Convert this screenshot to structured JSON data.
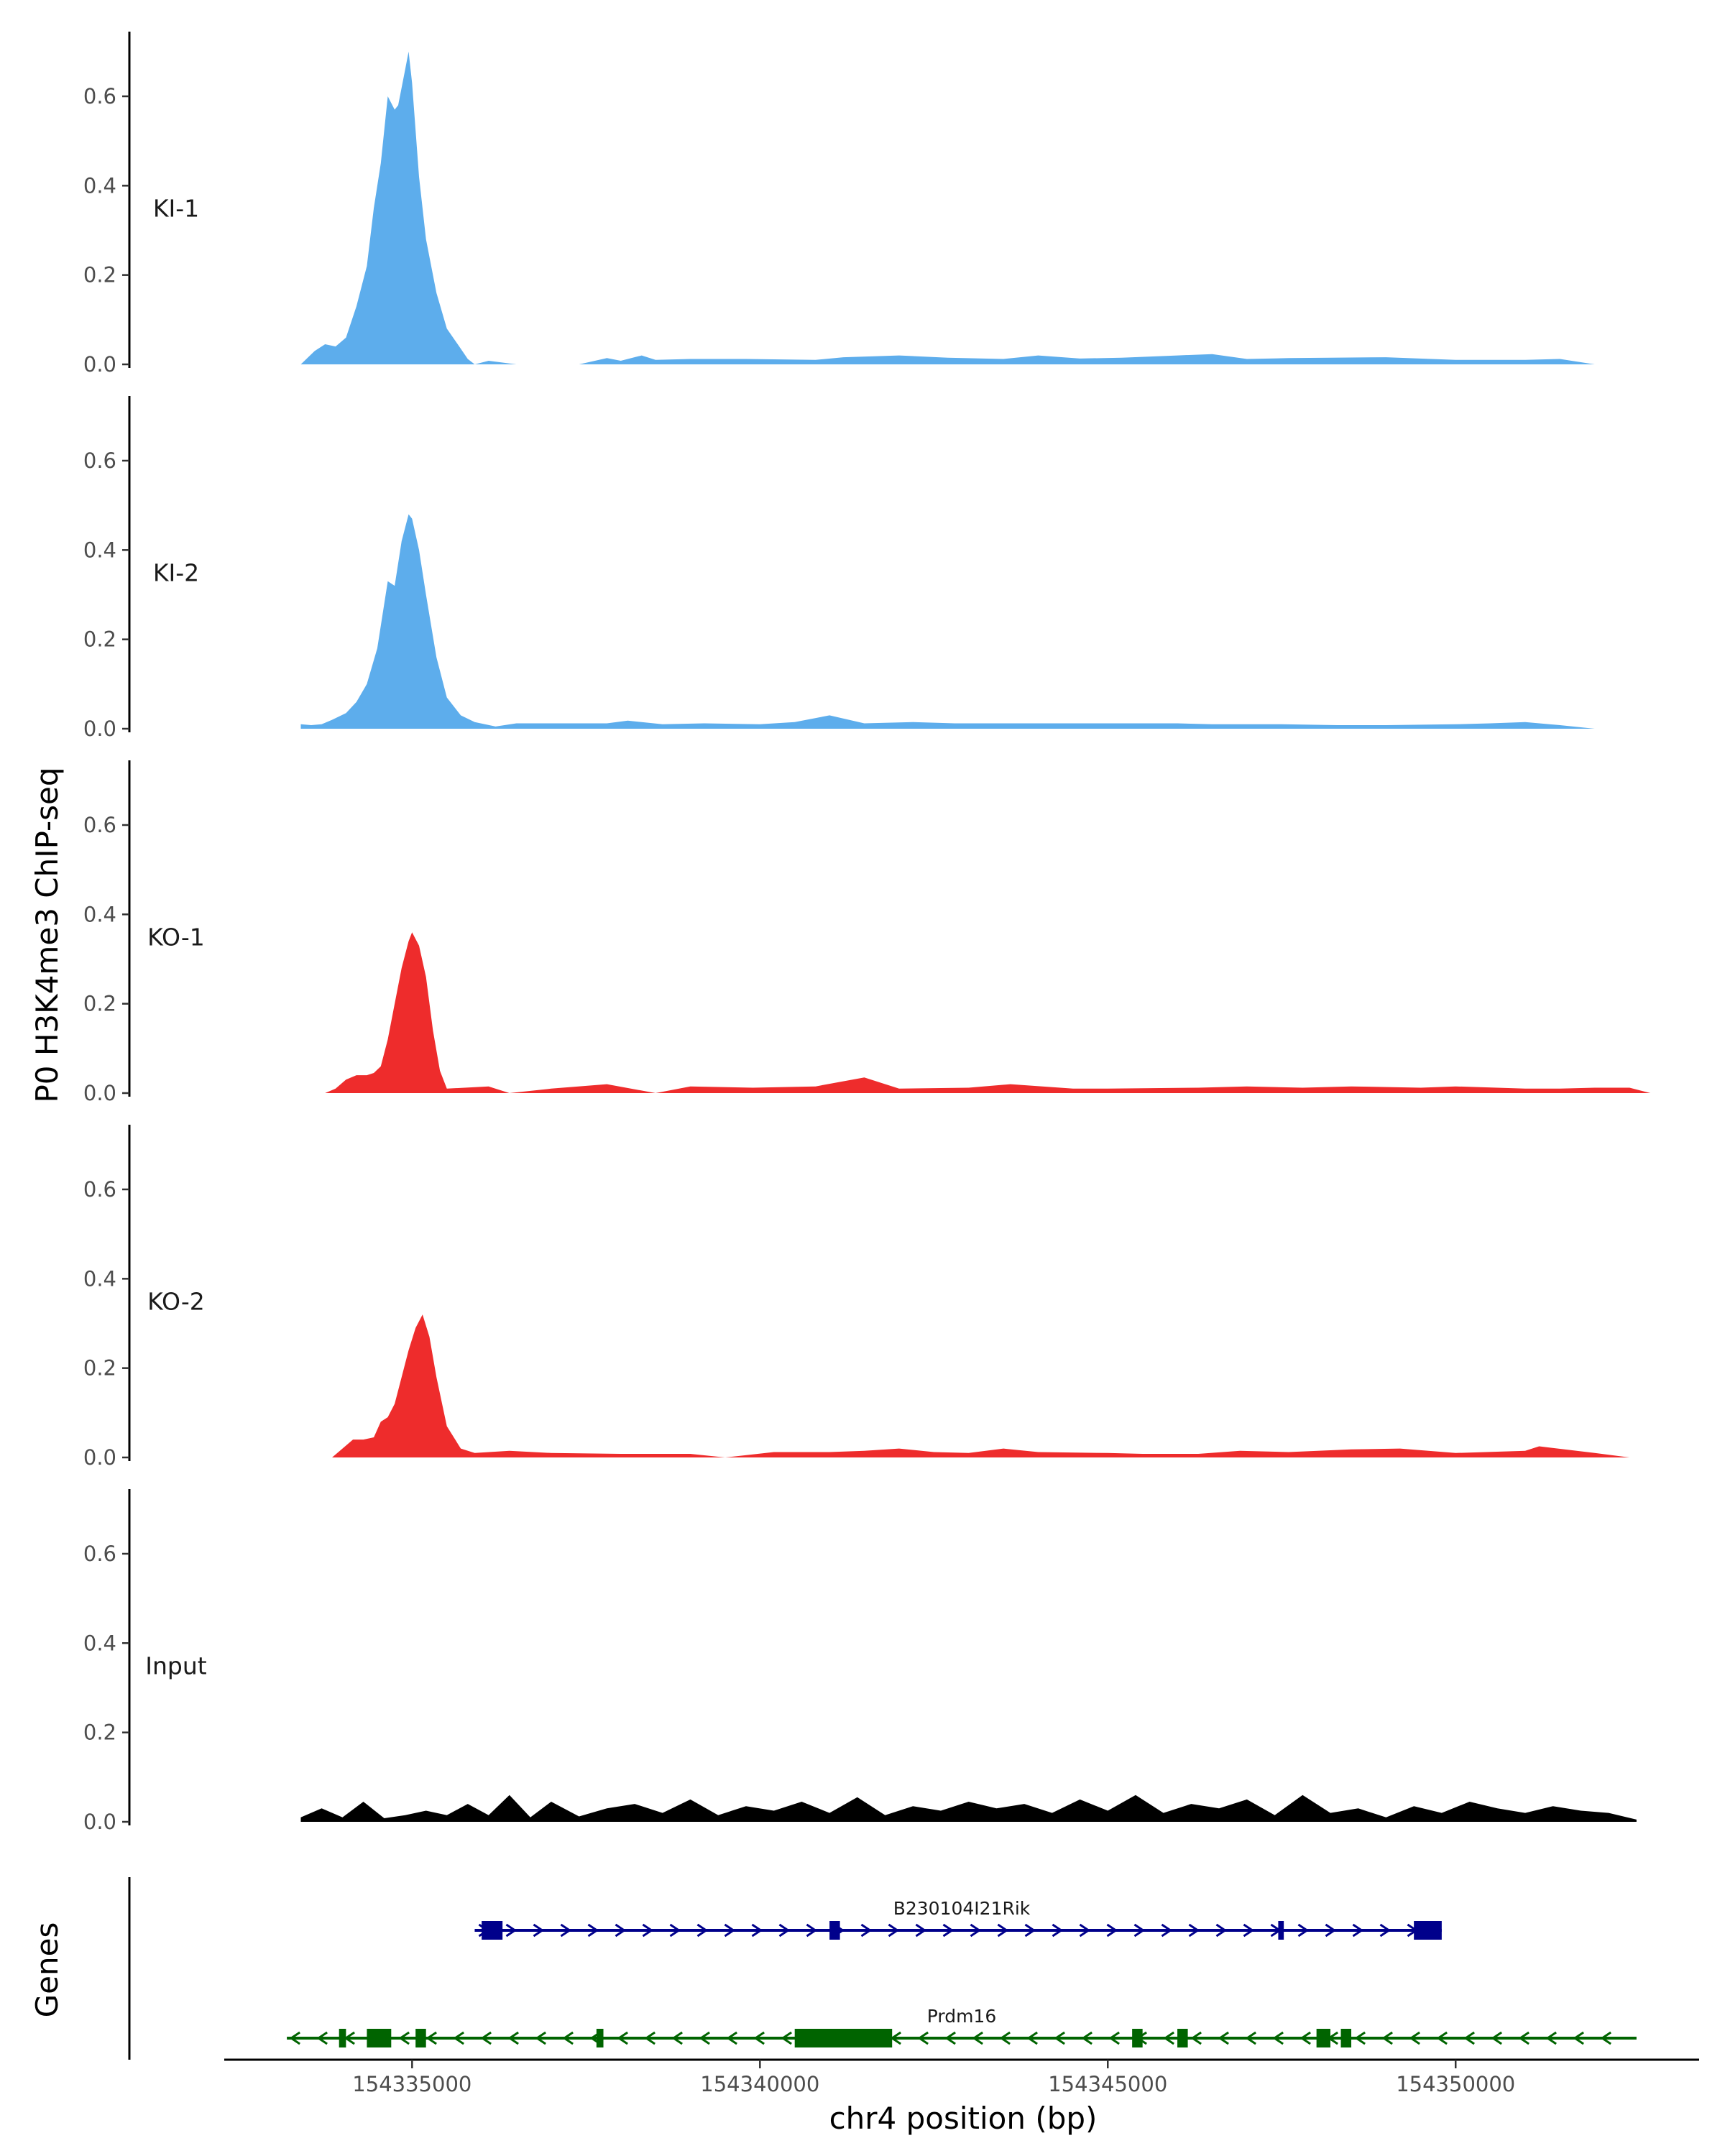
{
  "chart_data": {
    "type": "area",
    "ylabel": "P0 H3K4me3 ChIP-seq",
    "xlabel": "chr4 position (bp)",
    "xlim": [
      154332300,
      154353500
    ],
    "ylim": [
      0,
      0.74
    ],
    "yticks": [
      0.0,
      0.2,
      0.4,
      0.6
    ],
    "ytick_labels": [
      "0.0",
      "0.2",
      "0.4",
      "0.6"
    ],
    "xticks": [
      154335000,
      154340000,
      154345000,
      154350000
    ],
    "xtick_labels": [
      "154335000",
      "154340000",
      "154345000",
      "154350000"
    ],
    "grid": false,
    "colors": {
      "KI": "#5DADEC",
      "KO": "#EE2C2C",
      "Input": "#000000"
    },
    "tracks": [
      {
        "name": "KI-1",
        "color": "#5DADEC",
        "x": [
          154333400,
          154333600,
          154333750,
          154333900,
          154334050,
          154334200,
          154334350,
          154334450,
          154334550,
          154334650,
          154334750,
          154334800,
          154334900,
          154334950,
          154335000,
          154335100,
          154335200,
          154335350,
          154335500,
          154335700,
          154335800,
          154335900,
          154336100,
          154336500,
          154337400,
          154337800,
          154338000,
          154338300,
          154338500,
          154339000,
          154339800,
          154340800,
          154341200,
          154342000,
          154342700,
          154343500,
          154344000,
          154344600,
          154345200,
          154346000,
          154346500,
          154347000,
          154347600,
          154348200,
          154349000,
          154350000,
          154351000,
          154351500,
          154352000
        ],
        "values": [
          0,
          0.03,
          0.045,
          0.04,
          0.06,
          0.13,
          0.22,
          0.35,
          0.45,
          0.6,
          0.57,
          0.58,
          0.66,
          0.7,
          0.63,
          0.42,
          0.28,
          0.16,
          0.08,
          0.035,
          0.012,
          0,
          0.008,
          0,
          0,
          0.014,
          0.008,
          0.02,
          0.01,
          0.012,
          0.012,
          0.01,
          0.016,
          0.02,
          0.015,
          0.012,
          0.02,
          0.013,
          0.015,
          0.02,
          0.023,
          0.012,
          0.014,
          0.015,
          0.016,
          0.01,
          0.01,
          0.012,
          0
        ],
        "label_x": 154333000,
        "label_y": 0.35
      },
      {
        "name": "KI-2",
        "color": "#5DADEC",
        "x": [
          154333400,
          154333550,
          154333700,
          154333850,
          154334050,
          154334200,
          154334350,
          154334500,
          154334650,
          154334750,
          154334850,
          154334950,
          154335000,
          154335100,
          154335200,
          154335350,
          154335500,
          154335700,
          154335900,
          154336200,
          154336500,
          154337800,
          154338100,
          154338600,
          154339200,
          154340000,
          154340500,
          154341000,
          154341500,
          154342200,
          154342800,
          154343500,
          154344300,
          154345000,
          154345500,
          154346000,
          154346500,
          154347500,
          154348300,
          154349000,
          154350000,
          154350500,
          154351000,
          154351500,
          154352000
        ],
        "values": [
          0.01,
          0.008,
          0.01,
          0.02,
          0.035,
          0.06,
          0.1,
          0.18,
          0.33,
          0.32,
          0.42,
          0.48,
          0.47,
          0.4,
          0.3,
          0.16,
          0.07,
          0.03,
          0.015,
          0.005,
          0.012,
          0.012,
          0.018,
          0.01,
          0.012,
          0.01,
          0.015,
          0.03,
          0.012,
          0.015,
          0.012,
          0.012,
          0.012,
          0.012,
          0.012,
          0.012,
          0.01,
          0.01,
          0.008,
          0.008,
          0.01,
          0.012,
          0.015,
          0.008,
          0
        ],
        "label_x": 154333000,
        "label_y": 0.35
      },
      {
        "name": "KO-1",
        "color": "#EE2C2C",
        "x": [
          154333750,
          154333900,
          154334050,
          154334200,
          154334350,
          154334450,
          154334550,
          154334650,
          154334750,
          154334850,
          154334950,
          154335000,
          154335100,
          154335200,
          154335300,
          154335400,
          154335500,
          154336100,
          154336400,
          154337000,
          154337800,
          154338500,
          154339000,
          154339900,
          154340800,
          154341500,
          154342000,
          154343000,
          154343600,
          154344500,
          154345000,
          154346300,
          154347000,
          154347800,
          154348500,
          154349500,
          154350000,
          154351000,
          154351500,
          154352000,
          154352500,
          154352800
        ],
        "values": [
          0,
          0.01,
          0.03,
          0.04,
          0.04,
          0.045,
          0.06,
          0.12,
          0.2,
          0.28,
          0.34,
          0.36,
          0.33,
          0.26,
          0.14,
          0.05,
          0.01,
          0.015,
          0,
          0.01,
          0.02,
          0,
          0.015,
          0.012,
          0.015,
          0.035,
          0.01,
          0.012,
          0.02,
          0.01,
          0.01,
          0.012,
          0.015,
          0.012,
          0.015,
          0.012,
          0.015,
          0.01,
          0.01,
          0.012,
          0.012,
          0
        ],
        "label_x": 154333000,
        "label_y": 0.35
      },
      {
        "name": "KO-2",
        "color": "#EE2C2C",
        "x": [
          154333850,
          154334000,
          154334150,
          154334300,
          154334450,
          154334550,
          154334650,
          154334750,
          154334850,
          154334950,
          154335050,
          154335150,
          154335250,
          154335350,
          154335500,
          154335700,
          154335900,
          154336400,
          154337000,
          154338000,
          154339000,
          154339500,
          154340200,
          154341000,
          154341500,
          154342000,
          154342500,
          154343000,
          154343500,
          154344000,
          154345000,
          154345500,
          154346300,
          154346900,
          154347600,
          154348500,
          154349200,
          154350000,
          154351000,
          154351200,
          154352000,
          154352500
        ],
        "values": [
          0,
          0.02,
          0.04,
          0.04,
          0.045,
          0.08,
          0.09,
          0.12,
          0.18,
          0.24,
          0.29,
          0.32,
          0.27,
          0.18,
          0.07,
          0.02,
          0.01,
          0.015,
          0.01,
          0.008,
          0.008,
          0,
          0.012,
          0.012,
          0.015,
          0.02,
          0.012,
          0.01,
          0.02,
          0.012,
          0.01,
          0.008,
          0.008,
          0.015,
          0.012,
          0.018,
          0.02,
          0.01,
          0.015,
          0.025,
          0.01,
          0
        ],
        "label_x": 154333000,
        "label_y": 0.35
      },
      {
        "name": "Input",
        "color": "#000000",
        "x": [
          154333400,
          154333700,
          154334000,
          154334300,
          154334600,
          154334900,
          154335200,
          154335500,
          154335800,
          154336100,
          154336400,
          154336700,
          154337000,
          154337400,
          154337800,
          154338200,
          154338600,
          154339000,
          154339400,
          154339800,
          154340200,
          154340600,
          154341000,
          154341400,
          154341800,
          154342200,
          154342600,
          154343000,
          154343400,
          154343800,
          154344200,
          154344600,
          154345000,
          154345400,
          154345800,
          154346200,
          154346600,
          154347000,
          154347400,
          154347800,
          154348200,
          154348600,
          154349000,
          154349400,
          154349800,
          154350200,
          154350600,
          154351000,
          154351400,
          154351800,
          154352200,
          154352600
        ],
        "values": [
          0.01,
          0.03,
          0.01,
          0.045,
          0.008,
          0.015,
          0.025,
          0.015,
          0.04,
          0.015,
          0.06,
          0.01,
          0.045,
          0.012,
          0.03,
          0.04,
          0.02,
          0.05,
          0.015,
          0.035,
          0.025,
          0.045,
          0.02,
          0.055,
          0.015,
          0.035,
          0.025,
          0.045,
          0.03,
          0.04,
          0.02,
          0.05,
          0.025,
          0.06,
          0.02,
          0.04,
          0.03,
          0.05,
          0.015,
          0.06,
          0.02,
          0.03,
          0.01,
          0.035,
          0.02,
          0.045,
          0.03,
          0.02,
          0.035,
          0.025,
          0.02,
          0.005
        ],
        "label_x": 154333000,
        "label_y": 0.35
      }
    ]
  },
  "genes": {
    "title": "Genes",
    "items": [
      {
        "name": "B230104I21Rik",
        "color": "#00008B",
        "strand": "+",
        "start": 154335900,
        "end": 154349800,
        "row": 0,
        "label_x": 154342900,
        "exons": [
          [
            154336000,
            154336300
          ],
          [
            154341000,
            154341150
          ],
          [
            154347450,
            154347530
          ],
          [
            154349400,
            154349800
          ]
        ]
      },
      {
        "name": "Prdm16",
        "color": "#006400",
        "strand": "-",
        "start": 154333200,
        "end": 154352600,
        "row": 1,
        "label_x": 154342900,
        "exons": [
          [
            154333950,
            154334050
          ],
          [
            154334350,
            154334700
          ],
          [
            154335050,
            154335200
          ],
          [
            154337650,
            154337750
          ],
          [
            154340500,
            154341900
          ],
          [
            154345350,
            154345500
          ],
          [
            154346000,
            154346150
          ],
          [
            154348000,
            154348200
          ],
          [
            154348350,
            154348500
          ]
        ]
      }
    ]
  }
}
